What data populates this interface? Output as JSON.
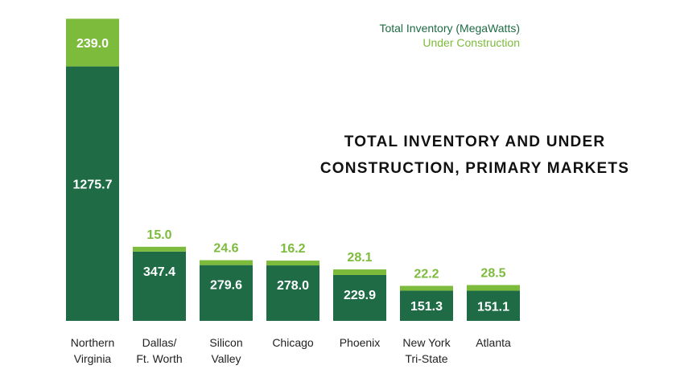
{
  "chart_data": {
    "type": "bar",
    "stacked": true,
    "title_lines": [
      "TOTAL INVENTORY AND UNDER",
      "CONSTRUCTION, PRIMARY MARKETS"
    ],
    "categories": [
      [
        "Northern",
        "Virginia"
      ],
      [
        "Dallas/",
        "Ft. Worth"
      ],
      [
        "Silicon",
        "Valley"
      ],
      [
        "Chicago"
      ],
      [
        "Phoenix"
      ],
      [
        "New York",
        "Tri-State"
      ],
      [
        "Atlanta"
      ]
    ],
    "series": [
      {
        "name": "Total Inventory (MegaWatts)",
        "color": "#1e6b45",
        "values": [
          1275.7,
          347.4,
          279.6,
          278.0,
          229.9,
          151.3,
          151.1
        ],
        "labels": [
          "1275.7",
          "347.4",
          "279.6",
          "278.0",
          "229.9",
          "151.3",
          "151.1"
        ]
      },
      {
        "name": "Under Construction",
        "color": "#7dbb3c",
        "values": [
          239.0,
          15.0,
          24.6,
          16.2,
          28.1,
          22.2,
          28.5
        ],
        "labels": [
          "239.0",
          "15.0",
          "24.6",
          "16.2",
          "28.1",
          "22.2",
          "28.5"
        ]
      }
    ],
    "ylim": [
      0,
      1520
    ],
    "grid": false,
    "legend_position": "top-right",
    "xlabel": "",
    "ylabel": ""
  }
}
